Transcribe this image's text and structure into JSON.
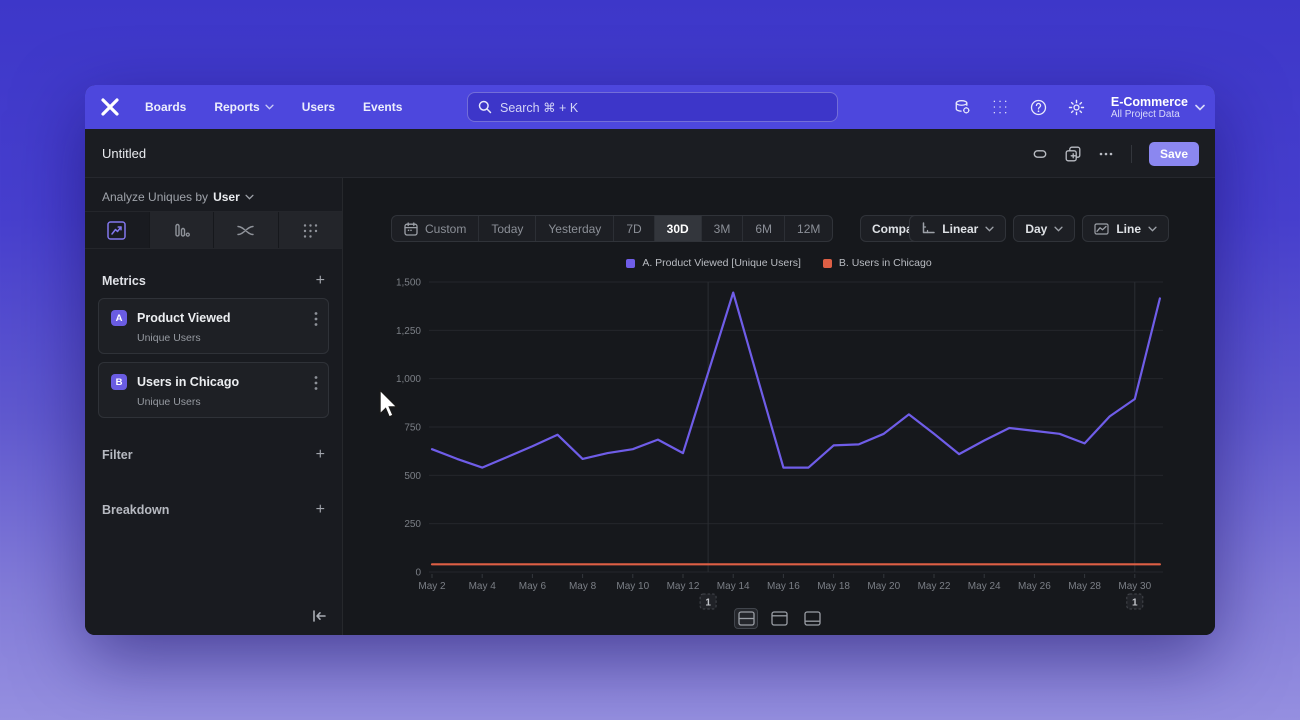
{
  "nav": {
    "items": [
      "Boards",
      "Reports",
      "Users",
      "Events"
    ],
    "search_placeholder": "Search  ⌘ + K",
    "project_name": "E-Commerce",
    "project_subtitle": "All Project Data"
  },
  "titlebar": {
    "title": "Untitled",
    "save_label": "Save"
  },
  "sidebar": {
    "analyze_prefix": "Analyze Uniques by",
    "analyze_value": "User",
    "metrics_label": "Metrics",
    "metrics": [
      {
        "badge": "A",
        "name": "Product Viewed",
        "subtitle": "Unique Users"
      },
      {
        "badge": "B",
        "name": "Users in Chicago",
        "subtitle": "Unique Users"
      }
    ],
    "filter_label": "Filter",
    "breakdown_label": "Breakdown"
  },
  "toolbar": {
    "ranges": [
      "Custom",
      "Today",
      "Yesterday",
      "7D",
      "30D",
      "3M",
      "6M",
      "12M"
    ],
    "selected_range": "30D",
    "compare_label": "Compare",
    "scale_label": "Linear",
    "interval_label": "Day",
    "charttype_label": "Line"
  },
  "icons": [
    "mixpanel-logo",
    "search-icon",
    "data-management-icon",
    "apps-grid-icon",
    "help-icon",
    "settings-gear-icon",
    "chevron-down-icon",
    "link-icon",
    "duplicate-icon",
    "more-ellipsis-icon",
    "calendar-icon",
    "axis-scale-icon",
    "line-chart-icon",
    "insights-tab-icon",
    "bar-chart-tab-icon",
    "flow-tab-icon",
    "retention-tab-icon",
    "kebab-menu-icon",
    "plus-icon",
    "collapse-sidebar-icon",
    "layout-split-icon",
    "layout-top-icon",
    "layout-bottom-icon",
    "cursor-arrow"
  ],
  "colors": {
    "nav_purple": "#4d47dd",
    "save_button": "#8b87f0",
    "series_a": "#6f5de8",
    "series_b": "#dd5f45",
    "app_bg": "#16181c"
  },
  "chart_data": {
    "type": "line",
    "title": "",
    "xlabel": "",
    "ylabel": "",
    "ylim": [
      0,
      1500
    ],
    "y_ticks": [
      0,
      250,
      500,
      750,
      1000,
      1250,
      1500
    ],
    "y_tick_labels": [
      "0",
      "250",
      "500",
      "750",
      "1,000",
      "1,250",
      "1,500"
    ],
    "grid": "horizontal",
    "legend_position": "top-center",
    "x": [
      "May 2",
      "May 3",
      "May 4",
      "May 5",
      "May 6",
      "May 7",
      "May 8",
      "May 9",
      "May 10",
      "May 11",
      "May 12",
      "May 13",
      "May 14",
      "May 15",
      "May 16",
      "May 17",
      "May 18",
      "May 19",
      "May 20",
      "May 21",
      "May 22",
      "May 23",
      "May 24",
      "May 25",
      "May 26",
      "May 27",
      "May 28",
      "May 29",
      "May 30",
      "May 31"
    ],
    "x_tick_labels": [
      "May 2",
      "May 4",
      "May 6",
      "May 8",
      "May 10",
      "May 12",
      "May 14",
      "May 16",
      "May 18",
      "May 20",
      "May 22",
      "May 24",
      "May 26",
      "May 28",
      "May 30"
    ],
    "series": [
      {
        "name": "A. Product Viewed [Unique Users]",
        "color": "#6f5de8",
        "values": [
          635,
          585,
          540,
          595,
          650,
          710,
          585,
          615,
          635,
          685,
          615,
          1030,
          1445,
          990,
          540,
          540,
          655,
          660,
          715,
          815,
          715,
          610,
          680,
          745,
          730,
          715,
          665,
          805,
          895,
          1415
        ]
      },
      {
        "name": "B. Users in Chicago",
        "color": "#dd5f45",
        "values": [
          40,
          40,
          40,
          40,
          40,
          40,
          40,
          40,
          40,
          40,
          40,
          40,
          40,
          40,
          40,
          40,
          40,
          40,
          40,
          40,
          40,
          40,
          40,
          40,
          40,
          40,
          40,
          40,
          40,
          40
        ]
      }
    ],
    "annotations": [
      {
        "label": "1",
        "x": "May 13"
      },
      {
        "label": "1",
        "x": "May 30"
      }
    ]
  }
}
